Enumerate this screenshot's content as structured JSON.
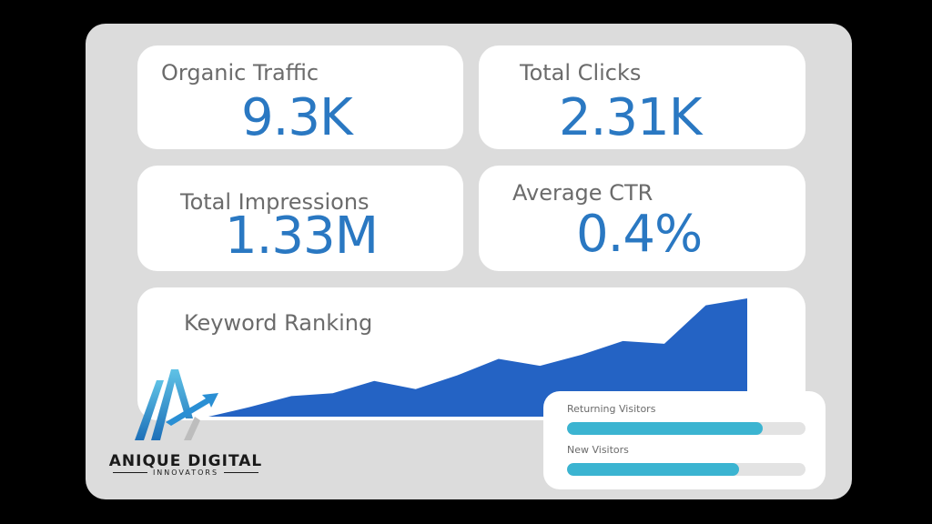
{
  "metrics": {
    "organic_traffic": {
      "label": "Organic Traffic",
      "value": "9.3K"
    },
    "total_clicks": {
      "label": "Total Clicks",
      "value": "2.31K"
    },
    "total_impressions": {
      "label": "Total Impressions",
      "value": "1.33M"
    },
    "average_ctr": {
      "label": "Average CTR",
      "value": "0.4%"
    }
  },
  "keyword_ranking": {
    "label": "Keyword Ranking"
  },
  "visitors": {
    "returning": {
      "label": "Returning Visitors",
      "fraction": 0.82
    },
    "new": {
      "label": "New Visitors",
      "fraction": 0.72
    }
  },
  "brand": {
    "name": "ANIQUE DIGITAL",
    "tagline": "INNOVATORS"
  },
  "colors": {
    "accent_blue": "#2a78c2",
    "area_fill": "#2463c4",
    "bar_fill": "#3bb4d1",
    "panel_bg": "#dcdcdc",
    "page_bg": "#000000"
  },
  "chart_data": {
    "type": "area",
    "title": "Keyword Ranking",
    "xlabel": "",
    "ylabel": "",
    "x": [
      0,
      1,
      2,
      3,
      4,
      5,
      6,
      7,
      8,
      9,
      10,
      11,
      12,
      13
    ],
    "series": [
      {
        "values": [
          0,
          7,
          15,
          17,
          26,
          20,
          30,
          42,
          37,
          45,
          55,
          53,
          81,
          86
        ]
      }
    ],
    "ylim": [
      0,
      90
    ],
    "grid": false,
    "legend": "none"
  }
}
